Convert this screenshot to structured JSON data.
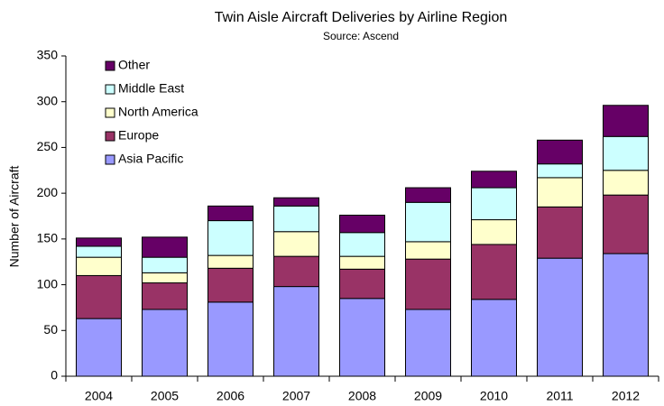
{
  "chart_data": {
    "type": "stacked_bar",
    "title": "Twin Aisle Aircraft Deliveries by Airline Region",
    "subtitle": "Source: Ascend",
    "y_label": "Number of Aircraft",
    "categories": [
      "2004",
      "2005",
      "2006",
      "2007",
      "2008",
      "2009",
      "2010",
      "2011",
      "2012"
    ],
    "series": [
      {
        "name": "Asia Pacific",
        "color": "#9999ff",
        "values": [
          63,
          73,
          81,
          98,
          85,
          73,
          84,
          129,
          134
        ]
      },
      {
        "name": "Europe",
        "color": "#993366",
        "values": [
          47,
          29,
          37,
          33,
          32,
          55,
          60,
          56,
          64
        ]
      },
      {
        "name": "North America",
        "color": "#ffffcc",
        "values": [
          20,
          11,
          14,
          27,
          14,
          19,
          27,
          32,
          27
        ]
      },
      {
        "name": "Middle East",
        "color": "#ccffff",
        "values": [
          12,
          17,
          38,
          28,
          26,
          43,
          35,
          15,
          37
        ]
      },
      {
        "name": "Other",
        "color": "#660066",
        "values": [
          9,
          22,
          16,
          9,
          19,
          16,
          18,
          26,
          34
        ]
      }
    ],
    "ylim": [
      0,
      350
    ],
    "yticks": [
      0,
      50,
      100,
      150,
      200,
      250,
      300,
      350
    ],
    "grid": false,
    "legend": "upper-left"
  }
}
